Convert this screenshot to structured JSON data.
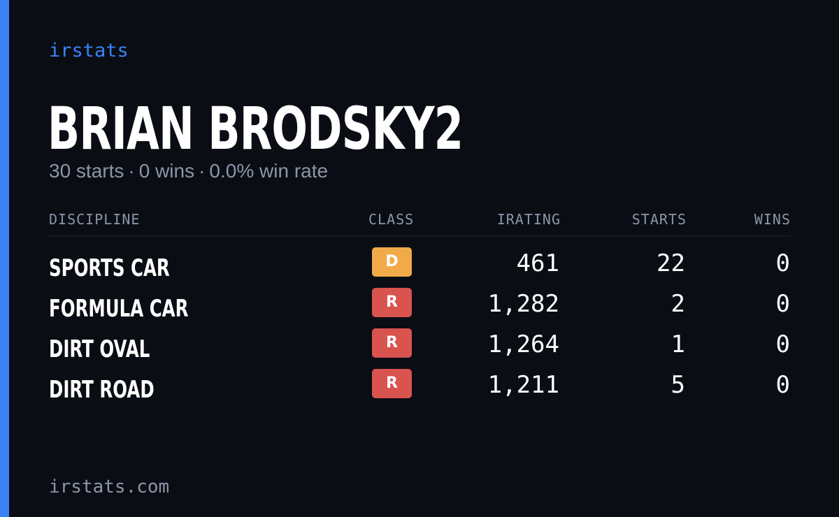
{
  "brand": "irstats",
  "driver": {
    "name": "BRIAN BRODSKY2",
    "starts_text": "30 starts",
    "wins_text": "0 wins",
    "win_rate_text": "0.0% win rate",
    "separator": "·"
  },
  "table": {
    "headers": {
      "discipline": "DISCIPLINE",
      "class": "CLASS",
      "irating": "IRATING",
      "starts": "STARTS",
      "wins": "WINS"
    },
    "rows": [
      {
        "discipline": "SPORTS CAR",
        "class": "D",
        "class_color": "#f0ab48",
        "irating": "461",
        "starts": "22",
        "wins": "0"
      },
      {
        "discipline": "FORMULA CAR",
        "class": "R",
        "class_color": "#d9534f",
        "irating": "1,282",
        "starts": "2",
        "wins": "0"
      },
      {
        "discipline": "DIRT OVAL",
        "class": "R",
        "class_color": "#d9534f",
        "irating": "1,264",
        "starts": "1",
        "wins": "0"
      },
      {
        "discipline": "DIRT ROAD",
        "class": "R",
        "class_color": "#d9534f",
        "irating": "1,211",
        "starts": "5",
        "wins": "0"
      }
    ]
  },
  "footer": "irstats.com",
  "colors": {
    "background": "#0a0d14",
    "accent": "#3b82f6",
    "muted": "#8c96a8",
    "divider": "#1e2430"
  }
}
